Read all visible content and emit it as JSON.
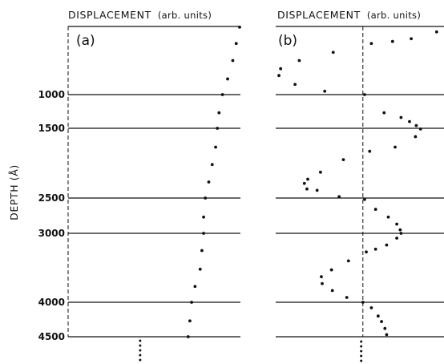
{
  "chart_data": {
    "type": "scatter",
    "ylabel": "DEPTH (Å)",
    "y_reversed": true,
    "ylim": [
      0,
      4820
    ],
    "y_ticks": [
      "1000",
      "1500",
      "2500",
      "3000",
      "4000",
      "4500"
    ],
    "panels": [
      {
        "tag": "(a)",
        "xlabel": "DISPLACEMENT",
        "xlabel_units": "(arb. units)",
        "x_reference": 0,
        "xlim": [
          0,
          1
        ],
        "points": [
          {
            "x": 1.0,
            "y": 10
          },
          {
            "x": 0.98,
            "y": 250
          },
          {
            "x": 0.96,
            "y": 500
          },
          {
            "x": 0.93,
            "y": 770
          },
          {
            "x": 0.9,
            "y": 1000
          },
          {
            "x": 0.88,
            "y": 1270
          },
          {
            "x": 0.87,
            "y": 1500
          },
          {
            "x": 0.86,
            "y": 1770
          },
          {
            "x": 0.84,
            "y": 2020
          },
          {
            "x": 0.82,
            "y": 2270
          },
          {
            "x": 0.8,
            "y": 2500
          },
          {
            "x": 0.79,
            "y": 2770
          },
          {
            "x": 0.79,
            "y": 3000
          },
          {
            "x": 0.78,
            "y": 3250
          },
          {
            "x": 0.77,
            "y": 3520
          },
          {
            "x": 0.74,
            "y": 3770
          },
          {
            "x": 0.72,
            "y": 4000
          },
          {
            "x": 0.71,
            "y": 4270
          },
          {
            "x": 0.7,
            "y": 4500
          }
        ],
        "tail_points": [
          {
            "x": 0.42,
            "y": 4550
          },
          {
            "x": 0.42,
            "y": 4610
          },
          {
            "x": 0.42,
            "y": 4670
          },
          {
            "x": 0.42,
            "y": 4730
          },
          {
            "x": 0.42,
            "y": 4790
          }
        ]
      },
      {
        "tag": "(b)",
        "xlabel": "DISPLACEMENT",
        "xlabel_units": "(arb. units)",
        "x_reference": 0,
        "xlim": [
          -1,
          0.9
        ],
        "points": [
          {
            "x": 0.87,
            "y": 80
          },
          {
            "x": 0.57,
            "y": 180
          },
          {
            "x": 0.35,
            "y": 220
          },
          {
            "x": 0.1,
            "y": 250
          },
          {
            "x": -0.35,
            "y": 380
          },
          {
            "x": -0.75,
            "y": 500
          },
          {
            "x": -0.97,
            "y": 620
          },
          {
            "x": -0.99,
            "y": 720
          },
          {
            "x": -0.8,
            "y": 850
          },
          {
            "x": -0.45,
            "y": 950
          },
          {
            "x": 0.02,
            "y": 1000
          },
          {
            "x": 0.25,
            "y": 1270
          },
          {
            "x": 0.45,
            "y": 1340
          },
          {
            "x": 0.55,
            "y": 1400
          },
          {
            "x": 0.63,
            "y": 1460
          },
          {
            "x": 0.68,
            "y": 1510
          },
          {
            "x": 0.62,
            "y": 1620
          },
          {
            "x": 0.38,
            "y": 1770
          },
          {
            "x": 0.08,
            "y": 1830
          },
          {
            "x": -0.23,
            "y": 1950
          },
          {
            "x": -0.5,
            "y": 2130
          },
          {
            "x": -0.65,
            "y": 2230
          },
          {
            "x": -0.69,
            "y": 2290
          },
          {
            "x": -0.66,
            "y": 2370
          },
          {
            "x": -0.54,
            "y": 2390
          },
          {
            "x": -0.28,
            "y": 2480
          },
          {
            "x": 0.02,
            "y": 2520
          },
          {
            "x": 0.15,
            "y": 2660
          },
          {
            "x": 0.3,
            "y": 2770
          },
          {
            "x": 0.4,
            "y": 2870
          },
          {
            "x": 0.44,
            "y": 2950
          },
          {
            "x": 0.45,
            "y": 3000
          },
          {
            "x": 0.4,
            "y": 3070
          },
          {
            "x": 0.28,
            "y": 3170
          },
          {
            "x": 0.15,
            "y": 3230
          },
          {
            "x": 0.04,
            "y": 3270
          },
          {
            "x": -0.17,
            "y": 3400
          },
          {
            "x": -0.37,
            "y": 3530
          },
          {
            "x": -0.49,
            "y": 3630
          },
          {
            "x": -0.48,
            "y": 3730
          },
          {
            "x": -0.36,
            "y": 3830
          },
          {
            "x": -0.19,
            "y": 3930
          },
          {
            "x": 0.0,
            "y": 4000
          },
          {
            "x": 0.1,
            "y": 4080
          },
          {
            "x": 0.18,
            "y": 4200
          },
          {
            "x": 0.22,
            "y": 4280
          },
          {
            "x": 0.26,
            "y": 4380
          },
          {
            "x": 0.28,
            "y": 4470
          }
        ],
        "tail_points": [
          {
            "x": -0.02,
            "y": 4560
          },
          {
            "x": -0.02,
            "y": 4620
          },
          {
            "x": -0.02,
            "y": 4680
          },
          {
            "x": -0.02,
            "y": 4740
          },
          {
            "x": -0.02,
            "y": 4800
          }
        ]
      }
    ]
  }
}
